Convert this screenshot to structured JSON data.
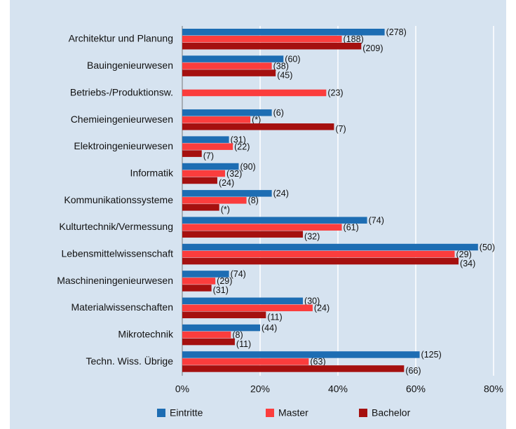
{
  "chart_data": {
    "type": "bar",
    "orientation": "horizontal",
    "categories": [
      "Architektur und Planung",
      "Bauingenieurwesen",
      "Betriebs-/Produktionsw.",
      "Chemieingenieurwesen",
      "Elektroingenieurwesen",
      "Informatik",
      "Kommunikationssysteme",
      "Kulturtechnik/Vermessung",
      "Lebensmittelwissenschaft",
      "Maschineningenieurwesen",
      "Materialwissenschaften",
      "Mikrotechnik",
      "Techn. Wiss. Übrige"
    ],
    "series": [
      {
        "name": "Eintritte",
        "color": "#1d6db3",
        "label_color": "#1d6db3",
        "values": [
          52,
          26,
          null,
          23,
          12,
          14.5,
          23,
          47.5,
          76,
          12,
          31,
          20,
          61
        ],
        "labels": [
          "(278)",
          "(60)",
          null,
          "(6)",
          "(31)",
          "(90)",
          "(24)",
          "(74)",
          "(50)",
          "(74)",
          "(30)",
          "(44)",
          "(125)"
        ]
      },
      {
        "name": "Master",
        "color": "#fb3d3d",
        "label_color": "#e02020",
        "values": [
          41,
          23,
          37,
          17.5,
          13,
          11,
          16.5,
          41,
          70,
          8.5,
          33.5,
          12.5,
          32.5
        ],
        "labels": [
          "(188)",
          "(38)",
          "(23)",
          "(*)",
          "(22)",
          "(32)",
          "(8)",
          "(61)",
          "(29)",
          "(29)",
          "(24)",
          "(8)",
          "(63)"
        ]
      },
      {
        "name": "Bachelor",
        "color": "#a5100f",
        "label_color": "#a5100f",
        "values": [
          46,
          24,
          null,
          39,
          5,
          9,
          9.5,
          31,
          71,
          7.5,
          21.5,
          13.5,
          57
        ],
        "labels": [
          "(209)",
          "(45)",
          null,
          "(7)",
          "(7)",
          "(24)",
          "(*)",
          "(32)",
          "(34)",
          "(31)",
          "(11)",
          "(11)",
          "(66)"
        ]
      }
    ],
    "xlim": [
      0,
      80
    ],
    "xticks": [
      {
        "value": 0,
        "label": "0%"
      },
      {
        "value": 20,
        "label": "20%"
      },
      {
        "value": 40,
        "label": "40%"
      },
      {
        "value": 60,
        "label": "60%"
      },
      {
        "value": 80,
        "label": "80%"
      }
    ],
    "grid": true,
    "legend": "bottom"
  }
}
